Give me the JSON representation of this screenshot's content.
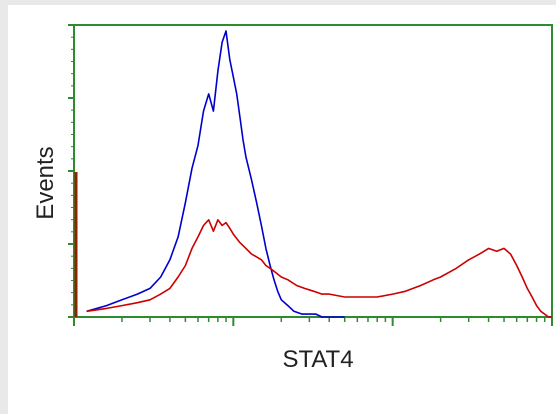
{
  "chart_data": {
    "type": "area",
    "title": "",
    "xlabel": "STAT4",
    "ylabel": "Events",
    "xscale": "log",
    "grid": false,
    "legend": "none",
    "xlim": [
      0,
      1000
    ],
    "ylim": [
      0,
      100
    ],
    "series": [
      {
        "color": "#0000cc",
        "x": [
          1.2,
          1.6,
          2.0,
          2.5,
          3.0,
          3.5,
          4.0,
          4.5,
          5.0,
          5.5,
          6.0,
          6.5,
          7.0,
          7.5,
          8.0,
          8.5,
          9.0,
          9.5,
          10,
          10.5,
          11,
          11.5,
          12,
          13,
          14,
          15,
          16,
          17,
          18,
          19,
          20,
          22,
          24,
          27,
          30,
          33,
          36,
          40,
          45,
          50
        ],
        "y": [
          2,
          4,
          6,
          8,
          10,
          14,
          20,
          28,
          40,
          52,
          60,
          72,
          78,
          72,
          86,
          96,
          100,
          90,
          84,
          78,
          70,
          62,
          56,
          48,
          40,
          32,
          24,
          18,
          13,
          9,
          6,
          4,
          2,
          1,
          1,
          1,
          0,
          0,
          0,
          0
        ]
      },
      {
        "color": "#cc0000",
        "x": [
          1.2,
          1.6,
          2.0,
          2.5,
          3.0,
          3.5,
          4.0,
          4.5,
          5.0,
          5.5,
          6.0,
          6.5,
          7.0,
          7.5,
          8.0,
          8.5,
          9.0,
          9.5,
          10,
          11,
          12,
          13,
          14,
          15,
          16,
          17,
          18,
          20,
          22,
          25,
          28,
          32,
          36,
          40,
          50,
          60,
          70,
          80,
          100,
          120,
          150,
          180,
          200,
          250,
          300,
          350,
          400,
          450,
          500,
          550,
          600,
          650,
          700,
          750,
          800,
          850,
          900,
          950,
          1000
        ],
        "y": [
          2,
          3,
          4,
          5,
          6,
          8,
          10,
          14,
          18,
          24,
          28,
          32,
          34,
          30,
          34,
          32,
          33,
          31,
          29,
          26,
          24,
          22,
          21,
          20,
          18,
          17,
          16,
          14,
          13,
          11,
          10,
          9,
          8,
          8,
          7,
          7,
          7,
          7,
          8,
          9,
          11,
          13,
          14,
          17,
          20,
          22,
          24,
          23,
          24,
          22,
          18,
          14,
          10,
          7,
          4,
          2,
          1,
          0,
          0
        ]
      }
    ]
  }
}
